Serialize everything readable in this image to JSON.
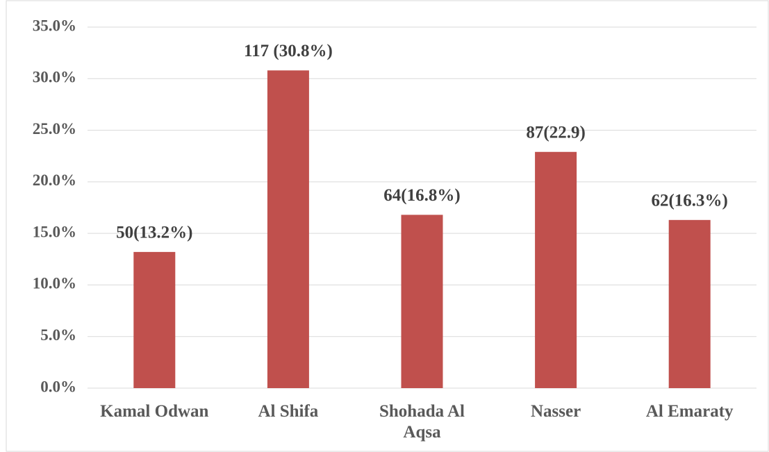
{
  "chart_data": {
    "type": "bar",
    "categories": [
      "Kamal Odwan",
      "Al Shifa",
      "Shohada Al Aqsa",
      "Nasser",
      "Al Emaraty"
    ],
    "values": [
      13.2,
      30.8,
      16.8,
      22.9,
      16.3
    ],
    "value_labels": [
      "50(13.2%)",
      "117 (30.8%)",
      "64(16.8%)",
      "87(22.9)",
      "62(16.3%)"
    ],
    "color": "#c0504d",
    "ylim": [
      0,
      35
    ],
    "yticks": [
      {
        "value": 0,
        "label": "0.0%"
      },
      {
        "value": 5,
        "label": "5.0%"
      },
      {
        "value": 10,
        "label": "10.0%"
      },
      {
        "value": 15,
        "label": "15.0%"
      },
      {
        "value": 20,
        "label": "20.0%"
      },
      {
        "value": 25,
        "label": "25.0%"
      },
      {
        "value": 30,
        "label": "30.0%"
      },
      {
        "value": 35,
        "label": "35.0%"
      }
    ],
    "grid": true
  }
}
